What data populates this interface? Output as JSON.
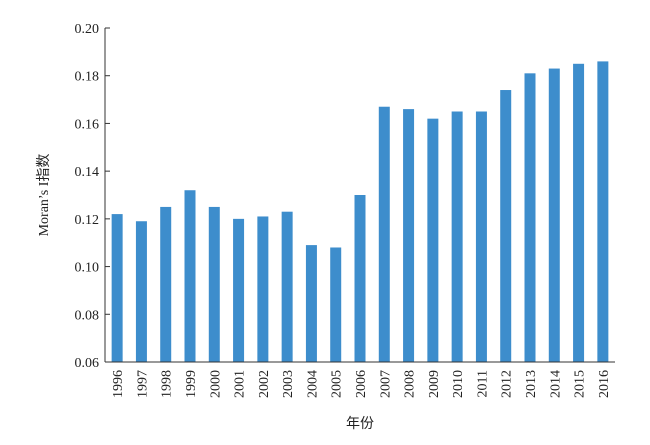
{
  "chart_data": {
    "type": "bar",
    "title": "",
    "xlabel": "年份",
    "ylabel": "Moran’s I指数",
    "ylim": [
      0.06,
      0.2
    ],
    "yticks": [
      "0.06",
      "0.08",
      "0.10",
      "0.12",
      "0.14",
      "0.16",
      "0.18",
      "0.20"
    ],
    "grid": false,
    "legend": "none",
    "bar_color": "#3d8dcc",
    "categories": [
      "1996",
      "1997",
      "1998",
      "1999",
      "2000",
      "2001",
      "2002",
      "2003",
      "2004",
      "2005",
      "2006",
      "2007",
      "2008",
      "2009",
      "2010",
      "2011",
      "2012",
      "2013",
      "2014",
      "2015",
      "2016"
    ],
    "values": [
      0.122,
      0.119,
      0.125,
      0.132,
      0.125,
      0.12,
      0.121,
      0.123,
      0.109,
      0.108,
      0.13,
      0.167,
      0.166,
      0.162,
      0.165,
      0.165,
      0.174,
      0.181,
      0.183,
      0.185,
      0.186
    ]
  }
}
